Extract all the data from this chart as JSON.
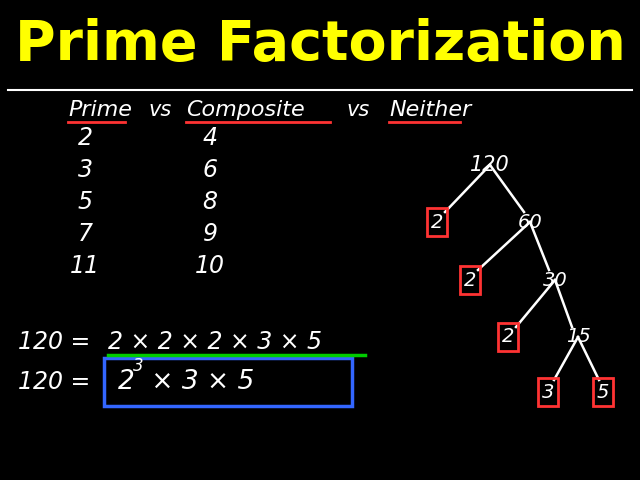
{
  "title": "Prime Factorization",
  "title_color": "#FFFF00",
  "bg_color": "#000000",
  "white": "#FFFFFF",
  "red": "#FF3333",
  "green": "#00CC00",
  "blue_box": "#3366FF",
  "prime_numbers": [
    "2",
    "3",
    "5",
    "7",
    "11"
  ],
  "composite_numbers": [
    "4",
    "6",
    "8",
    "9",
    "10"
  ],
  "title_fontsize": 40,
  "header_fontsize": 16,
  "body_fontsize": 17,
  "tree_fontsize": 15,
  "eq_fontsize": 17
}
